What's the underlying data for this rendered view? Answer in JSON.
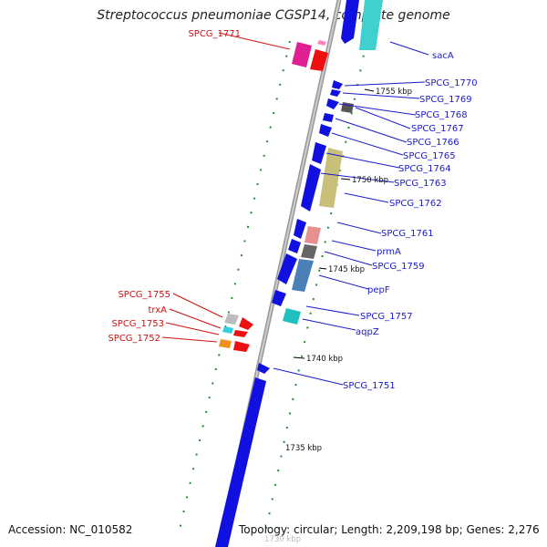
{
  "title": "Streptococcus pneumoniae CGSP14, complete genome",
  "footer": {
    "accession": "Accession: NC_010582",
    "summary": "Topology: circular; Length: 2,209,198 bp; Genes: 2,276"
  },
  "ticks": [
    {
      "label": "1755 kbp"
    },
    {
      "label": "1750 kbp"
    },
    {
      "label": "1745 kbp"
    },
    {
      "label": "1740 kbp"
    },
    {
      "label": "1735 kbp"
    },
    {
      "label": "1730 kbp"
    }
  ],
  "gene_labels": [
    {
      "name": "sacA",
      "strand": "forward"
    },
    {
      "name": "SPCG_1770",
      "strand": "forward"
    },
    {
      "name": "SPCG_1769",
      "strand": "forward"
    },
    {
      "name": "SPCG_1768",
      "strand": "forward"
    },
    {
      "name": "SPCG_1767",
      "strand": "forward"
    },
    {
      "name": "SPCG_1766",
      "strand": "forward"
    },
    {
      "name": "SPCG_1765",
      "strand": "forward"
    },
    {
      "name": "SPCG_1764",
      "strand": "forward"
    },
    {
      "name": "SPCG_1763",
      "strand": "forward"
    },
    {
      "name": "SPCG_1762",
      "strand": "forward"
    },
    {
      "name": "SPCG_1761",
      "strand": "forward"
    },
    {
      "name": "prmA",
      "strand": "forward"
    },
    {
      "name": "SPCG_1759",
      "strand": "forward"
    },
    {
      "name": "pepF",
      "strand": "forward"
    },
    {
      "name": "SPCG_1757",
      "strand": "forward"
    },
    {
      "name": "aqpZ",
      "strand": "forward"
    },
    {
      "name": "SPCG_1751",
      "strand": "forward"
    },
    {
      "name": "SPCG_1771",
      "strand": "reverse"
    },
    {
      "name": "SPCG_1755",
      "strand": "reverse"
    },
    {
      "name": "trxA",
      "strand": "reverse"
    },
    {
      "name": "SPCG_1753",
      "strand": "reverse"
    },
    {
      "name": "SPCG_1752",
      "strand": "reverse"
    }
  ],
  "colors": {
    "forward_label": "#1a1acc",
    "reverse_label": "#cc1111",
    "backbone": "#888888",
    "cds": "#1010e0",
    "dots": "#2a8a2a"
  }
}
